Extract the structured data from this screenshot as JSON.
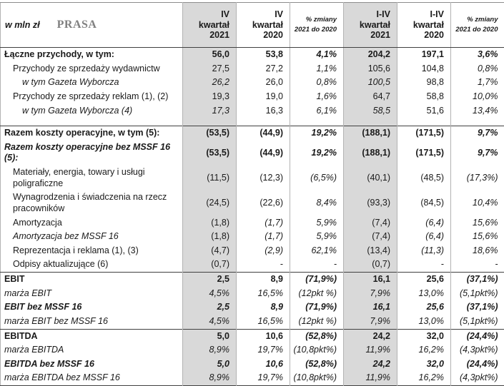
{
  "meta": {
    "unit_label": "w mln zł",
    "segment_title": "PRASA"
  },
  "colors": {
    "column_highlight": "#d9d9d9",
    "title_gray": "#808080",
    "section_line": "#404040",
    "grid_line": "#b3b3b3",
    "text": "#1a1a1a"
  },
  "columns": [
    {
      "label": "IV kwartał 2021",
      "lines": "IV\nkwartał\n2021",
      "highlight": true,
      "pct": false
    },
    {
      "label": "IV kwartał 2020",
      "lines": "IV\nkwartał\n2020",
      "highlight": false,
      "pct": false
    },
    {
      "label": "% zmiany 2021 do 2020",
      "lines": "% zmiany\n2021 do 2020",
      "highlight": false,
      "pct": true
    },
    {
      "label": "I-IV kwartał 2021",
      "lines": "I-IV\nkwartał\n2021",
      "highlight": true,
      "pct": false
    },
    {
      "label": "I-IV kwartał 2020",
      "lines": "I-IV\nkwartał\n2020",
      "highlight": false,
      "pct": false
    },
    {
      "label": "% zmiany 2021 do 2020",
      "lines": "% zmiany\n2021 do 2020",
      "highlight": false,
      "pct": true
    }
  ],
  "rows": [
    {
      "label": "Łączne przychody, w tym:",
      "indent": 0,
      "bold": true,
      "values": [
        "56,0",
        "53,8",
        "4,1%",
        "204,2",
        "197,1",
        "3,6%"
      ]
    },
    {
      "label": "Przychody ze sprzedaży wydawnictw",
      "indent": 1,
      "values": [
        "27,5",
        "27,2",
        "1,1%",
        "105,6",
        "104,8",
        "0,8%"
      ]
    },
    {
      "label": "w tym Gazeta Wyborcza",
      "indent": 2,
      "label_italic": true,
      "italic_cells": [
        0,
        3
      ],
      "values": [
        "26,2",
        "26,0",
        "0,8%",
        "100,5",
        "98,8",
        "1,7%"
      ]
    },
    {
      "label": "Przychody ze sprzedaży reklam (1), (2)",
      "indent": 1,
      "values": [
        "19,3",
        "19,0",
        "1,6%",
        "64,7",
        "58,8",
        "10,0%"
      ]
    },
    {
      "label": "w tym Gazeta Wyborcza (4)",
      "indent": 2,
      "label_italic": true,
      "italic_cells": [
        0,
        3
      ],
      "gap_after": true,
      "values": [
        "17,3",
        "16,3",
        "6,1%",
        "58,5",
        "51,6",
        "13,4%"
      ]
    },
    {
      "label": "Razem koszty operacyjne, w tym (5):",
      "indent": 0,
      "bold": true,
      "section_start": true,
      "values": [
        "(53,5)",
        "(44,9)",
        "19,2%",
        "(188,1)",
        "(171,5)",
        "9,7%"
      ]
    },
    {
      "label": "Razem koszty operacyjne bez MSSF 16 (5):",
      "indent": 0,
      "bold": true,
      "label_italic": true,
      "values": [
        "(53,5)",
        "(44,9)",
        "19,2%",
        "(188,1)",
        "(171,5)",
        "9,7%"
      ]
    },
    {
      "label": "Materiały, energia, towary i usługi poligraficzne",
      "indent": 1,
      "values": [
        "(11,5)",
        "(12,3)",
        "(6,5%)",
        "(40,1)",
        "(48,5)",
        "(17,3%)"
      ]
    },
    {
      "label": "Wynagrodzenia i świadczenia na rzecz pracowników",
      "indent": 1,
      "values": [
        "(24,5)",
        "(22,6)",
        "8,4%",
        "(93,3)",
        "(84,5)",
        "10,4%"
      ]
    },
    {
      "label": "Amortyzacja",
      "indent": 1,
      "italic_cells": [
        1,
        4
      ],
      "values": [
        "(1,8)",
        "(1,7)",
        "5,9%",
        "(7,4)",
        "(6,4)",
        "15,6%"
      ]
    },
    {
      "label": "Amortyzacja bez MSSF 16",
      "indent": 1,
      "label_italic": true,
      "italic_cells": [
        1,
        4
      ],
      "values": [
        "(1,8)",
        "(1,7)",
        "5,9%",
        "(7,4)",
        "(6,4)",
        "15,6%"
      ]
    },
    {
      "label": "Reprezentacja i reklama (1), (3)",
      "indent": 1,
      "italic_cells": [
        1,
        4
      ],
      "values": [
        "(4,7)",
        "(2,9)",
        "62,1%",
        "(13,4)",
        "(11,3)",
        "18,6%"
      ]
    },
    {
      "label": "Odpisy aktualizujące (6)",
      "indent": 1,
      "values": [
        "(0,7)",
        "-",
        "-",
        "(0,7)",
        "-",
        "-"
      ]
    },
    {
      "label": "EBIT",
      "indent": 0,
      "bold": true,
      "section_start": true,
      "values": [
        "2,5",
        "8,9",
        "(71,9%)",
        "16,1",
        "25,6",
        "(37,1%)"
      ]
    },
    {
      "label": "marża EBIT",
      "indent": 0,
      "label_italic": true,
      "values_italic": true,
      "values": [
        "4,5%",
        "16,5%",
        "(12pkt %)",
        "7,9%",
        "13,0%",
        "(5,1pkt%)"
      ]
    },
    {
      "label": "EBIT bez MSSF 16",
      "indent": 0,
      "bold": true,
      "label_italic": true,
      "values_italic": true,
      "values": [
        "2,5",
        "8,9",
        "(71,9%)",
        "16,1",
        "25,6",
        "(37,1%)"
      ]
    },
    {
      "label": "marża EBIT bez MSSF 16",
      "indent": 0,
      "label_italic": true,
      "values_italic": true,
      "values": [
        "4,5%",
        "16,5%",
        "(12pkt %)",
        "7,9%",
        "13,0%",
        "(5,1pkt%)"
      ]
    },
    {
      "label": "EBITDA",
      "indent": 0,
      "bold": true,
      "section_start": true,
      "values": [
        "5,0",
        "10,6",
        "(52,8%)",
        "24,2",
        "32,0",
        "(24,4%)"
      ]
    },
    {
      "label": "marża EBITDA",
      "indent": 0,
      "label_italic": true,
      "values_italic": true,
      "values": [
        "8,9%",
        "19,7%",
        "(10,8pkt%)",
        "11,9%",
        "16,2%",
        "(4,3pkt%)"
      ]
    },
    {
      "label": "EBITDA bez MSSF 16",
      "indent": 0,
      "bold": true,
      "label_italic": true,
      "values_italic": true,
      "values": [
        "5,0",
        "10,6",
        "(52,8%)",
        "24,2",
        "32,0",
        "(24,4%)"
      ]
    },
    {
      "label": "marża EBITDA bez MSSF 16",
      "indent": 0,
      "label_italic": true,
      "values_italic": true,
      "values": [
        "8,9%",
        "19,7%",
        "(10,8pkt%)",
        "11,9%",
        "16,2%",
        "(4,3pkt%)"
      ]
    }
  ]
}
